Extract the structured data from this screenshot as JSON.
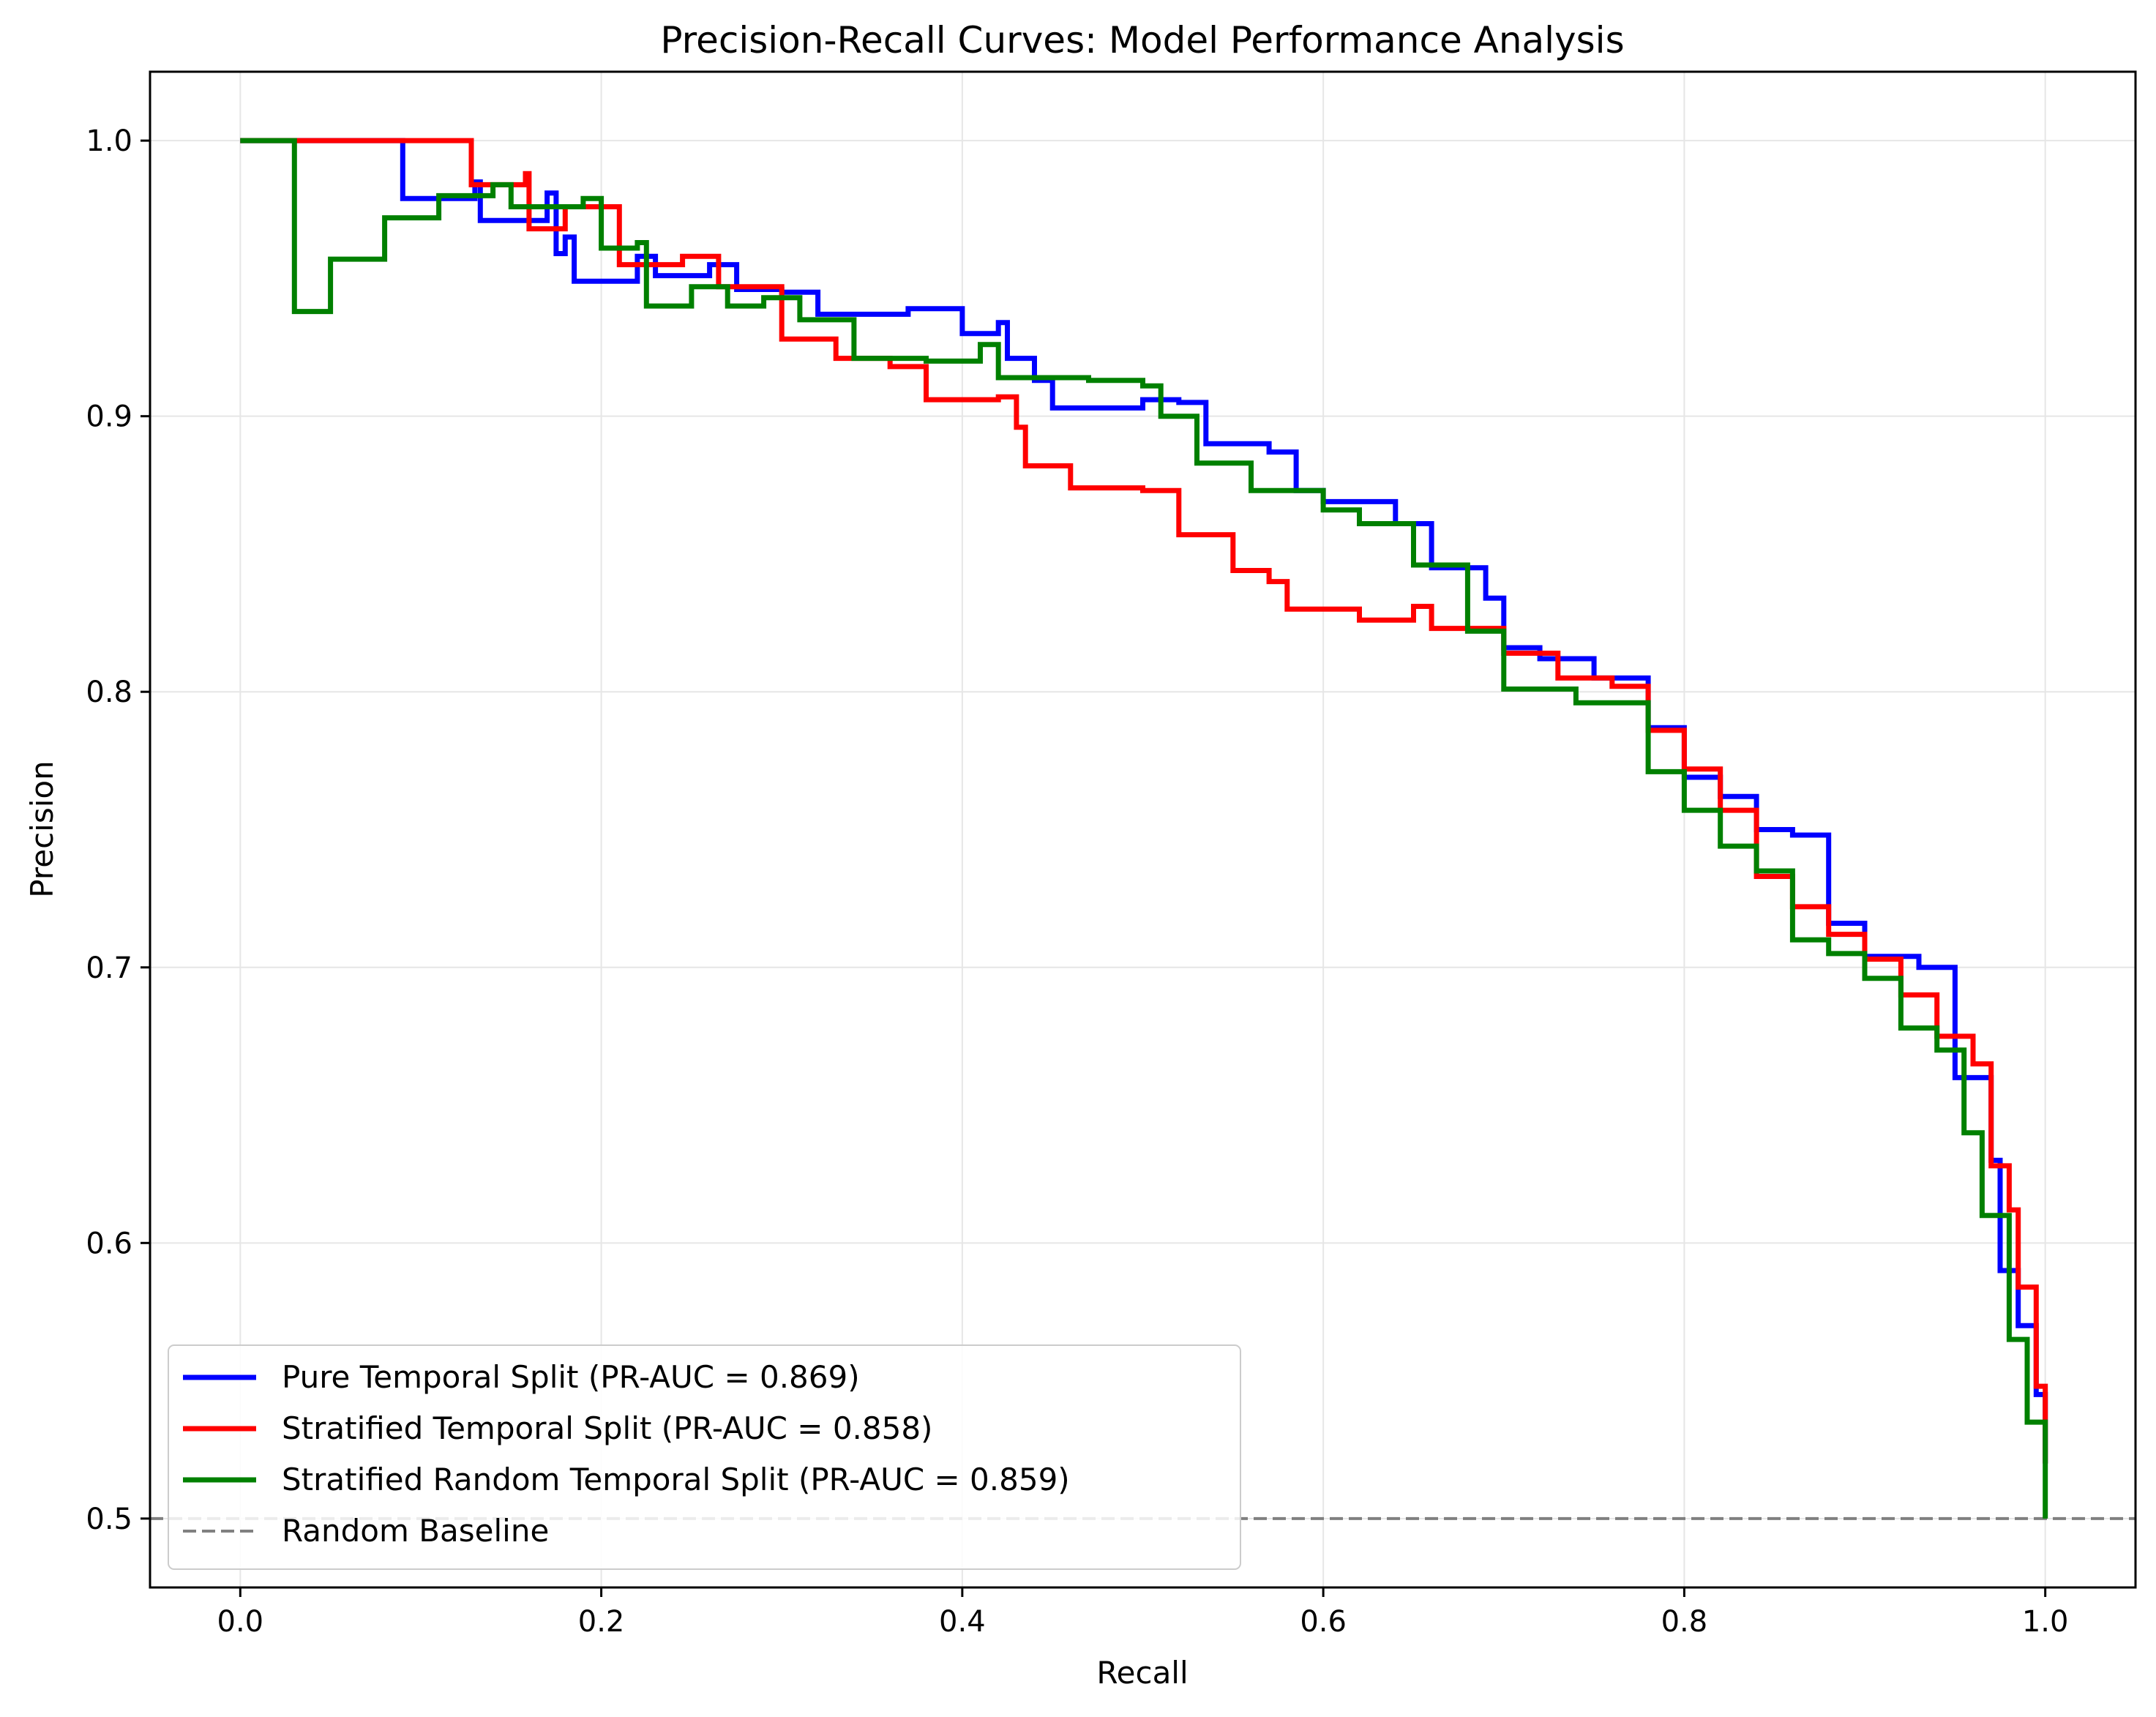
{
  "chart_data": {
    "type": "line",
    "title": "Precision-Recall Curves: Model Performance Analysis",
    "xlabel": "Recall",
    "ylabel": "Precision",
    "xlim": [
      -0.05,
      1.05
    ],
    "ylim": [
      0.475,
      1.025
    ],
    "grid": true,
    "legend_position": "lower left",
    "x_ticks": [
      0.0,
      0.2,
      0.4,
      0.6,
      0.8,
      1.0
    ],
    "x_tick_labels": [
      "0.0",
      "0.2",
      "0.4",
      "0.6",
      "0.8",
      "1.0"
    ],
    "y_ticks": [
      0.5,
      0.6,
      0.7,
      0.8,
      0.9,
      1.0
    ],
    "y_tick_labels": [
      "0.5",
      "0.6",
      "0.7",
      "0.8",
      "0.9",
      "1.0"
    ],
    "series": [
      {
        "name": "Pure Temporal Split (PR-AUC = 0.869)",
        "color": "#0000ff",
        "points": [
          [
            0.0,
            1.0
          ],
          [
            0.09,
            1.0
          ],
          [
            0.09,
            0.979
          ],
          [
            0.13,
            0.985
          ],
          [
            0.133,
            0.971
          ],
          [
            0.17,
            0.981
          ],
          [
            0.175,
            0.959
          ],
          [
            0.18,
            0.965
          ],
          [
            0.185,
            0.949
          ],
          [
            0.22,
            0.958
          ],
          [
            0.23,
            0.951
          ],
          [
            0.26,
            0.955
          ],
          [
            0.275,
            0.946
          ],
          [
            0.3,
            0.945
          ],
          [
            0.32,
            0.937
          ],
          [
            0.37,
            0.939
          ],
          [
            0.4,
            0.93
          ],
          [
            0.42,
            0.934
          ],
          [
            0.425,
            0.921
          ],
          [
            0.44,
            0.913
          ],
          [
            0.45,
            0.903
          ],
          [
            0.5,
            0.906
          ],
          [
            0.52,
            0.905
          ],
          [
            0.535,
            0.89
          ],
          [
            0.57,
            0.887
          ],
          [
            0.585,
            0.873
          ],
          [
            0.6,
            0.869
          ],
          [
            0.64,
            0.861
          ],
          [
            0.66,
            0.845
          ],
          [
            0.69,
            0.834
          ],
          [
            0.7,
            0.816
          ],
          [
            0.72,
            0.812
          ],
          [
            0.75,
            0.805
          ],
          [
            0.78,
            0.787
          ],
          [
            0.8,
            0.769
          ],
          [
            0.82,
            0.762
          ],
          [
            0.84,
            0.75
          ],
          [
            0.86,
            0.748
          ],
          [
            0.88,
            0.716
          ],
          [
            0.9,
            0.704
          ],
          [
            0.93,
            0.7
          ],
          [
            0.95,
            0.66
          ],
          [
            0.97,
            0.63
          ],
          [
            0.975,
            0.59
          ],
          [
            0.985,
            0.57
          ],
          [
            0.995,
            0.545
          ],
          [
            1.0,
            0.52
          ]
        ]
      },
      {
        "name": "Stratified Temporal Split (PR-AUC = 0.858)",
        "color": "#ff0000",
        "points": [
          [
            0.0,
            1.0
          ],
          [
            0.128,
            1.0
          ],
          [
            0.128,
            0.984
          ],
          [
            0.158,
            0.988
          ],
          [
            0.16,
            0.968
          ],
          [
            0.18,
            0.976
          ],
          [
            0.21,
            0.955
          ],
          [
            0.245,
            0.958
          ],
          [
            0.265,
            0.947
          ],
          [
            0.3,
            0.928
          ],
          [
            0.33,
            0.921
          ],
          [
            0.36,
            0.918
          ],
          [
            0.38,
            0.906
          ],
          [
            0.42,
            0.907
          ],
          [
            0.43,
            0.896
          ],
          [
            0.435,
            0.882
          ],
          [
            0.46,
            0.874
          ],
          [
            0.5,
            0.873
          ],
          [
            0.52,
            0.857
          ],
          [
            0.55,
            0.844
          ],
          [
            0.57,
            0.84
          ],
          [
            0.58,
            0.83
          ],
          [
            0.6,
            0.83
          ],
          [
            0.62,
            0.826
          ],
          [
            0.65,
            0.831
          ],
          [
            0.66,
            0.823
          ],
          [
            0.7,
            0.814
          ],
          [
            0.73,
            0.805
          ],
          [
            0.76,
            0.802
          ],
          [
            0.78,
            0.786
          ],
          [
            0.8,
            0.772
          ],
          [
            0.82,
            0.757
          ],
          [
            0.84,
            0.733
          ],
          [
            0.86,
            0.722
          ],
          [
            0.88,
            0.712
          ],
          [
            0.9,
            0.703
          ],
          [
            0.92,
            0.69
          ],
          [
            0.94,
            0.675
          ],
          [
            0.96,
            0.665
          ],
          [
            0.97,
            0.628
          ],
          [
            0.98,
            0.612
          ],
          [
            0.985,
            0.584
          ],
          [
            0.995,
            0.548
          ],
          [
            1.0,
            0.52
          ]
        ]
      },
      {
        "name": "Stratified Random Temporal Split (PR-AUC = 0.859)",
        "color": "#008000",
        "points": [
          [
            0.0,
            1.0
          ],
          [
            0.03,
            1.0
          ],
          [
            0.03,
            0.938
          ],
          [
            0.05,
            0.957
          ],
          [
            0.08,
            0.972
          ],
          [
            0.11,
            0.98
          ],
          [
            0.14,
            0.984
          ],
          [
            0.15,
            0.976
          ],
          [
            0.19,
            0.979
          ],
          [
            0.2,
            0.961
          ],
          [
            0.22,
            0.963
          ],
          [
            0.225,
            0.94
          ],
          [
            0.25,
            0.947
          ],
          [
            0.27,
            0.94
          ],
          [
            0.29,
            0.943
          ],
          [
            0.31,
            0.935
          ],
          [
            0.34,
            0.921
          ],
          [
            0.38,
            0.92
          ],
          [
            0.41,
            0.926
          ],
          [
            0.42,
            0.914
          ],
          [
            0.47,
            0.913
          ],
          [
            0.5,
            0.911
          ],
          [
            0.51,
            0.9
          ],
          [
            0.53,
            0.883
          ],
          [
            0.56,
            0.873
          ],
          [
            0.6,
            0.866
          ],
          [
            0.62,
            0.861
          ],
          [
            0.65,
            0.846
          ],
          [
            0.68,
            0.822
          ],
          [
            0.7,
            0.801
          ],
          [
            0.74,
            0.796
          ],
          [
            0.78,
            0.771
          ],
          [
            0.8,
            0.757
          ],
          [
            0.82,
            0.744
          ],
          [
            0.84,
            0.735
          ],
          [
            0.86,
            0.71
          ],
          [
            0.88,
            0.705
          ],
          [
            0.9,
            0.696
          ],
          [
            0.92,
            0.678
          ],
          [
            0.94,
            0.67
          ],
          [
            0.955,
            0.64
          ],
          [
            0.965,
            0.61
          ],
          [
            0.98,
            0.565
          ],
          [
            0.99,
            0.535
          ],
          [
            1.0,
            0.5
          ]
        ]
      },
      {
        "name": "Random Baseline",
        "color": "#808080",
        "dashed": true,
        "points": [
          [
            -0.05,
            0.5
          ],
          [
            1.05,
            0.5
          ]
        ]
      }
    ]
  }
}
